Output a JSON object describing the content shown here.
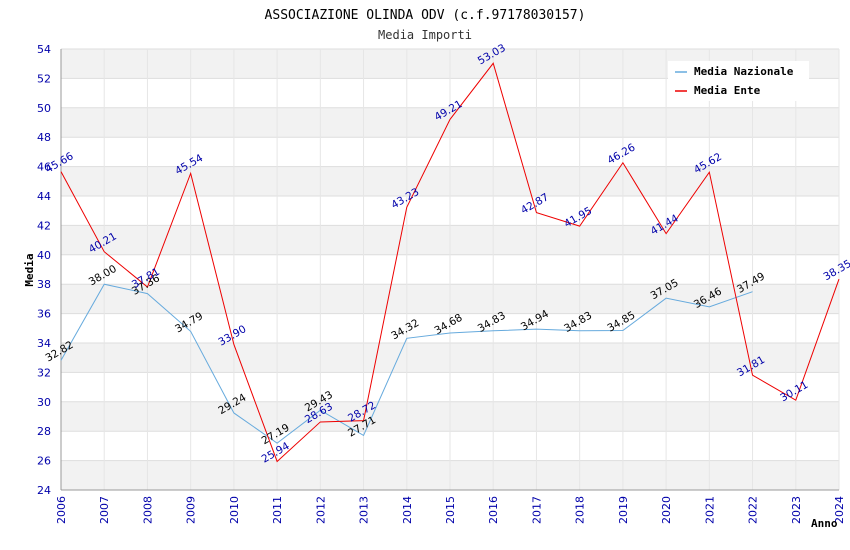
{
  "chart_data": {
    "type": "line",
    "title": "ASSOCIAZIONE OLINDA ODV (c.f.97178030157)",
    "subtitle": "Media Importi",
    "xlabel": "Anno",
    "ylabel": "Media",
    "ylim": [
      24,
      54
    ],
    "ytick_step": 2,
    "grid": true,
    "legend_position": "top-right",
    "categories": [
      "2006",
      "2007",
      "2008",
      "2009",
      "2010",
      "2011",
      "2012",
      "2013",
      "2014",
      "2015",
      "2016",
      "2017",
      "2018",
      "2019",
      "2020",
      "2021",
      "2022",
      "2023",
      "2024"
    ],
    "series": [
      {
        "name": "Media Nazionale",
        "color": "#66aadd",
        "label_color": "#000000",
        "values": [
          32.82,
          38.0,
          37.36,
          34.79,
          29.24,
          27.19,
          29.43,
          27.71,
          34.32,
          34.68,
          34.83,
          34.94,
          34.83,
          34.85,
          37.05,
          36.46,
          37.49,
          null,
          null
        ],
        "labels": [
          "32.82",
          "38.00",
          "37.36",
          "34.79",
          "29.24",
          "27.19",
          "29.43",
          "27.71",
          "34.32",
          "34.68",
          "34.83",
          "34.94",
          "34.83",
          "34.85",
          "37.05",
          "36.46",
          "37.49",
          null,
          null
        ]
      },
      {
        "name": "Media Ente",
        "color": "#ee0000",
        "label_color": "#0000aa",
        "values": [
          45.66,
          40.21,
          37.81,
          45.54,
          33.9,
          25.94,
          28.63,
          28.72,
          43.23,
          49.21,
          53.03,
          42.87,
          41.95,
          46.26,
          41.44,
          45.62,
          31.81,
          30.11,
          38.35
        ],
        "labels": [
          "45.66",
          "40.21",
          "37.81",
          "45.54",
          "33.90",
          "25.94",
          "28.63",
          "28.72",
          "43.23",
          "49.21",
          "53.03",
          "42.87",
          "41.95",
          "46.26",
          "41.44",
          "45.62",
          "31.81",
          "30.11",
          "38.35"
        ]
      }
    ]
  }
}
